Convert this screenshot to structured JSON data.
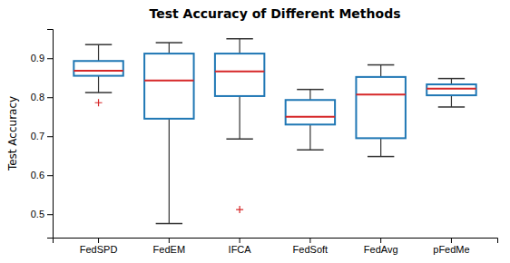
{
  "chart_data": {
    "type": "box",
    "title": "Test Accuracy of Different Methods",
    "ylabel": "Test Accuracy",
    "categories": [
      "FedSPD",
      "FedEM",
      "IFCA",
      "FedSoft",
      "FedAvg",
      "pFedMe"
    ],
    "boxes": [
      {
        "q1": 0.855,
        "median": 0.868,
        "q3": 0.893,
        "whislo": 0.812,
        "whishi": 0.935,
        "fliers": [
          0.786
        ]
      },
      {
        "q1": 0.745,
        "median": 0.843,
        "q3": 0.912,
        "whislo": 0.476,
        "whishi": 0.94,
        "fliers": []
      },
      {
        "q1": 0.803,
        "median": 0.866,
        "q3": 0.912,
        "whislo": 0.693,
        "whishi": 0.95,
        "fliers": [
          0.512
        ]
      },
      {
        "q1": 0.73,
        "median": 0.75,
        "q3": 0.793,
        "whislo": 0.665,
        "whishi": 0.82,
        "fliers": []
      },
      {
        "q1": 0.695,
        "median": 0.807,
        "q3": 0.852,
        "whislo": 0.648,
        "whishi": 0.883,
        "fliers": []
      },
      {
        "q1": 0.805,
        "median": 0.822,
        "q3": 0.833,
        "whislo": 0.775,
        "whishi": 0.848,
        "fliers": []
      }
    ],
    "ylim": [
      0.44,
      0.975
    ],
    "yticks": [
      0.5,
      0.6,
      0.7,
      0.8,
      0.9
    ],
    "grid": false
  }
}
